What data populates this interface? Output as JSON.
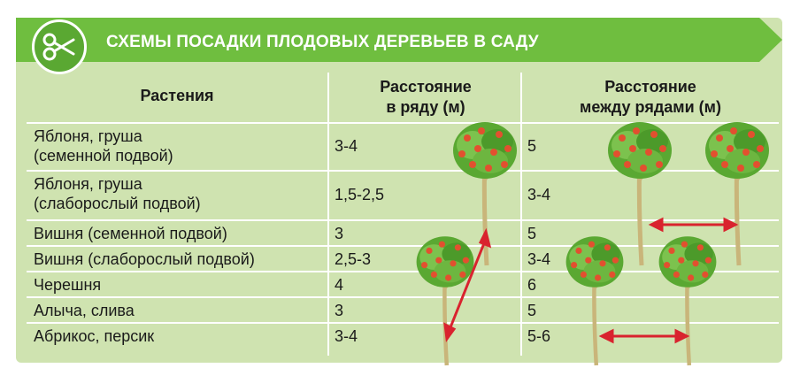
{
  "title": "СХЕМЫ ПОСАДКИ ПЛОДОВЫХ ДЕРЕВЬЕВ В САДУ",
  "columns": {
    "plants": "Растения",
    "in_row": "Расстояние\nв ряду (м)",
    "between_rows": "Расстояние\nмежду рядами (м)"
  },
  "rows": [
    {
      "plant": "Яблоня, груша\n(семенной подвой)",
      "in_row": "3-4",
      "between_rows": "5"
    },
    {
      "plant": "Яблоня, груша\n(слаборослый подвой)",
      "in_row": "1,5-2,5",
      "between_rows": "3-4"
    },
    {
      "plant": "Вишня (семенной подвой)",
      "in_row": "3",
      "between_rows": "5"
    },
    {
      "plant": "Вишня (слаборослый подвой)",
      "in_row": "2,5-3",
      "between_rows": "3-4"
    },
    {
      "plant": "Черешня",
      "in_row": "4",
      "between_rows": "6"
    },
    {
      "plant": "Алыча, слива",
      "in_row": "3",
      "between_rows": "5"
    },
    {
      "plant": "Абрикос, персик",
      "in_row": "3-4",
      "between_rows": "5-6"
    }
  ],
  "icons": {
    "logo": "scissors-icon",
    "tree": "fruit-tree-icon",
    "arrow": "double-arrow-icon"
  },
  "colors": {
    "title_bar": "#6fbe3f",
    "panel": "#cfe3b0",
    "grid": "#ffffff",
    "arrow": "#d9232e",
    "fruit": "#e2502f",
    "foliage": "#5aa832"
  }
}
